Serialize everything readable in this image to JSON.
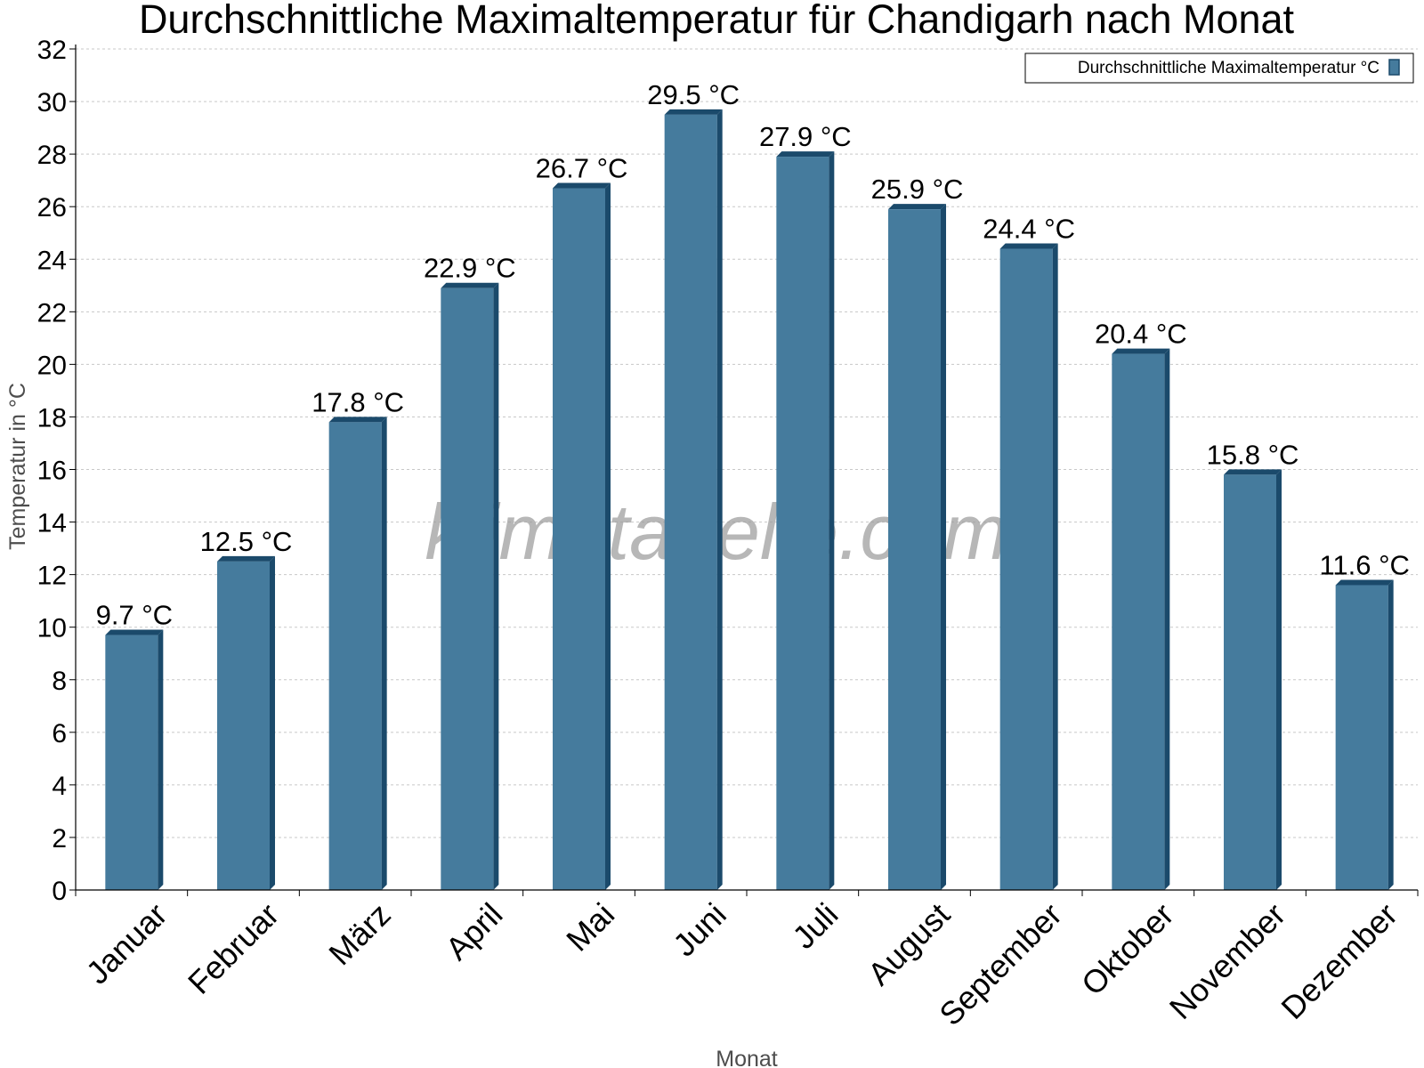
{
  "chart_data": {
    "type": "bar",
    "title": "Durchschnittliche Maximaltemperatur für Chandigarh nach Monat",
    "xlabel": "Monat",
    "ylabel": "Temperatur in °C",
    "categories": [
      "Januar",
      "Februar",
      "März",
      "April",
      "Mai",
      "Juni",
      "Juli",
      "August",
      "September",
      "Oktober",
      "November",
      "Dezember"
    ],
    "series": [
      {
        "name": "Durchschnittliche Maximaltemperatur °C",
        "values": [
          9.7,
          12.5,
          17.8,
          22.9,
          26.7,
          29.5,
          27.9,
          25.9,
          24.4,
          20.4,
          15.8,
          11.6
        ]
      }
    ],
    "data_labels": [
      "9.7 °C",
      "12.5 °C",
      "17.8 °C",
      "22.9 °C",
      "26.7 °C",
      "29.5 °C",
      "27.9 °C",
      "25.9 °C",
      "24.4 °C",
      "20.4 °C",
      "15.8 °C",
      "11.6 °C"
    ],
    "ylim": [
      0,
      32
    ],
    "yticks": [
      0,
      2,
      4,
      6,
      8,
      10,
      12,
      14,
      16,
      18,
      20,
      22,
      24,
      26,
      28,
      30,
      32
    ],
    "grid": true,
    "legend_position": "top-right",
    "colors": {
      "bar": "#457b9d",
      "bar_dark": "#1b4a6b",
      "grid": "#c8c8c8",
      "axis": "#000000"
    }
  },
  "watermark": "klimatabelle.com"
}
